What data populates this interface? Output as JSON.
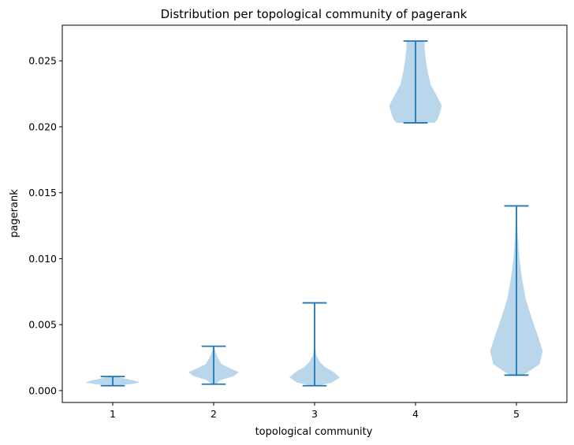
{
  "chart_data": {
    "type": "violin",
    "title": "Distribution per topological community of pagerank",
    "xlabel": "topological community",
    "ylabel": "pagerank",
    "categories": [
      "1",
      "2",
      "3",
      "4",
      "5"
    ],
    "xlim": [
      0.5,
      5.5
    ],
    "ylim": [
      -0.0009,
      0.0277
    ],
    "yticks": [
      0.0,
      0.005,
      0.01,
      0.015,
      0.02,
      0.025
    ],
    "ytick_labels": [
      "0.000",
      "0.005",
      "0.010",
      "0.015",
      "0.020",
      "0.025"
    ],
    "grid": false,
    "colors": {
      "body": "#bad6ea",
      "line": "#1f77b4"
    },
    "violins": [
      {
        "category": "1",
        "min": 0.00037,
        "max": 0.00107,
        "profile": [
          [
            0.00037,
            0.04
          ],
          [
            0.0005,
            0.18
          ],
          [
            0.00062,
            0.27
          ],
          [
            0.00075,
            0.22
          ],
          [
            0.00088,
            0.14
          ],
          [
            0.001,
            0.07
          ],
          [
            0.00107,
            0.03
          ]
        ]
      },
      {
        "category": "2",
        "min": 0.00049,
        "max": 0.00336,
        "profile": [
          [
            0.00049,
            0.02
          ],
          [
            0.0008,
            0.07
          ],
          [
            0.0011,
            0.2
          ],
          [
            0.0014,
            0.25
          ],
          [
            0.0017,
            0.16
          ],
          [
            0.002,
            0.08
          ],
          [
            0.0025,
            0.04
          ],
          [
            0.003,
            0.015
          ],
          [
            0.00336,
            0.004
          ]
        ]
      },
      {
        "category": "3",
        "min": 0.00037,
        "max": 0.00665,
        "profile": [
          [
            0.00037,
            0.03
          ],
          [
            0.0006,
            0.17
          ],
          [
            0.001,
            0.25
          ],
          [
            0.0014,
            0.19
          ],
          [
            0.0018,
            0.1
          ],
          [
            0.0022,
            0.05
          ],
          [
            0.0027,
            0.015
          ],
          [
            0.0035,
            0.004
          ],
          [
            0.0045,
            0.002
          ],
          [
            0.00665,
            0.001
          ]
        ]
      },
      {
        "category": "4",
        "min": 0.0203,
        "max": 0.0265,
        "profile": [
          [
            0.0203,
            0.19
          ],
          [
            0.0206,
            0.22
          ],
          [
            0.021,
            0.24
          ],
          [
            0.0216,
            0.26
          ],
          [
            0.0222,
            0.22
          ],
          [
            0.0232,
            0.15
          ],
          [
            0.0242,
            0.12
          ],
          [
            0.0252,
            0.1
          ],
          [
            0.026,
            0.09
          ],
          [
            0.0265,
            0.09
          ]
        ]
      },
      {
        "category": "5",
        "min": 0.00117,
        "max": 0.014,
        "profile": [
          [
            0.00117,
            0.07
          ],
          [
            0.002,
            0.23
          ],
          [
            0.003,
            0.26
          ],
          [
            0.0042,
            0.21
          ],
          [
            0.0055,
            0.15
          ],
          [
            0.007,
            0.09
          ],
          [
            0.0085,
            0.055
          ],
          [
            0.01,
            0.03
          ],
          [
            0.0115,
            0.015
          ],
          [
            0.013,
            0.006
          ],
          [
            0.014,
            0.003
          ]
        ]
      }
    ]
  }
}
